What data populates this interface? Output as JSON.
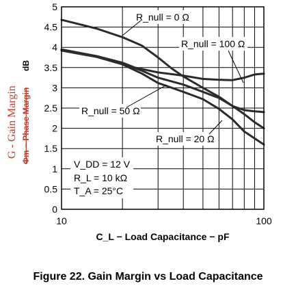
{
  "caption": "Figure 22. Gain Margin vs Load Capacitance",
  "chart_data": {
    "type": "line",
    "x_scale": "log",
    "xlim": [
      10,
      100
    ],
    "ylim": [
      0,
      5
    ],
    "grid": true,
    "xlabel": "C_L − Load Capacitance − pF",
    "ylabel": "G - Gain Margin",
    "ylabel_struck": "Φm − Phase Margin",
    "ylabel_unit": "dB",
    "x_ticks": [
      10,
      20,
      30,
      40,
      50,
      60,
      70,
      80,
      90,
      100
    ],
    "x_tick_labels": [
      {
        "value": 10,
        "label": "10"
      },
      {
        "value": 100,
        "label": "100"
      }
    ],
    "y_ticks": [
      0,
      0.5,
      1,
      1.5,
      2,
      2.5,
      3,
      3.5,
      4,
      4.5,
      5
    ],
    "y_tick_labels": [
      "0",
      "0.5",
      "1",
      "1.5",
      "2",
      "2.5",
      "3",
      "3.5",
      "4",
      "4.5",
      "5"
    ],
    "series": [
      {
        "name": "R_null = 0 Ω",
        "points": [
          [
            10,
            4.68
          ],
          [
            15,
            4.46
          ],
          [
            20,
            4.25
          ],
          [
            25,
            4.04
          ],
          [
            30,
            3.75
          ],
          [
            35,
            3.48
          ],
          [
            40,
            3.28
          ],
          [
            50,
            3.0
          ],
          [
            60,
            2.78
          ],
          [
            70,
            2.55
          ],
          [
            80,
            2.45
          ],
          [
            90,
            2.42
          ],
          [
            100,
            2.4
          ]
        ]
      },
      {
        "name": "R_null = 100 Ω",
        "points": [
          [
            10,
            3.93
          ],
          [
            15,
            3.78
          ],
          [
            20,
            3.62
          ],
          [
            23,
            3.5
          ],
          [
            30,
            3.38
          ],
          [
            40,
            3.3
          ],
          [
            50,
            3.22
          ],
          [
            60,
            3.2
          ],
          [
            70,
            3.19
          ],
          [
            80,
            3.25
          ],
          [
            90,
            3.33
          ],
          [
            100,
            3.35
          ]
        ]
      },
      {
        "name": "R_null = 50 Ω",
        "points": [
          [
            10,
            3.95
          ],
          [
            15,
            3.78
          ],
          [
            20,
            3.6
          ],
          [
            25,
            3.42
          ],
          [
            30,
            3.25
          ],
          [
            40,
            3.08
          ],
          [
            50,
            2.9
          ],
          [
            60,
            2.75
          ],
          [
            70,
            2.55
          ],
          [
            80,
            2.35
          ],
          [
            90,
            2.15
          ],
          [
            100,
            2.0
          ]
        ]
      },
      {
        "name": "R_null = 20 Ω",
        "points": [
          [
            10,
            3.92
          ],
          [
            15,
            3.76
          ],
          [
            20,
            3.58
          ],
          [
            25,
            3.35
          ],
          [
            30,
            3.12
          ],
          [
            40,
            2.9
          ],
          [
            50,
            2.72
          ],
          [
            60,
            2.48
          ],
          [
            70,
            2.22
          ],
          [
            80,
            1.92
          ],
          [
            90,
            1.75
          ],
          [
            100,
            1.6
          ]
        ]
      }
    ],
    "labels": {
      "r0": "R_null = 0 Ω",
      "r100": "R_null = 100 Ω",
      "r50": "R_null = 50 Ω",
      "r20": "R_null = 20 Ω"
    },
    "conditions": [
      "V_DD = 12 V",
      "R_L = 10 kΩ",
      "T_A = 25°C"
    ]
  }
}
